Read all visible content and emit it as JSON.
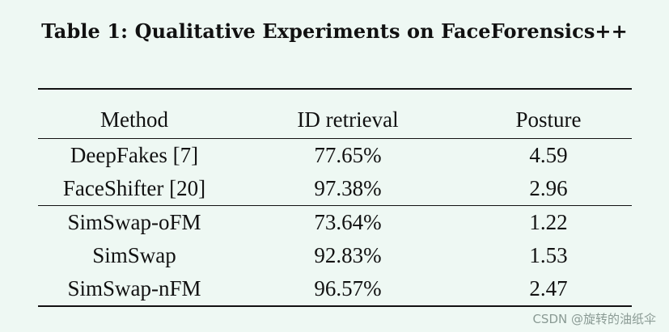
{
  "caption": "Table 1: Qualitative Experiments on FaceForensics++",
  "table": {
    "headers": [
      "Method",
      "ID retrieval",
      "Posture"
    ],
    "group1": [
      {
        "method": "DeepFakes [7]",
        "id_retrieval": "77.65%",
        "posture": "4.59"
      },
      {
        "method": "FaceShifter [20]",
        "id_retrieval": "97.38%",
        "posture": "2.96"
      }
    ],
    "group2": [
      {
        "method": "SimSwap-oFM",
        "id_retrieval": "73.64%",
        "posture": "1.22"
      },
      {
        "method": "SimSwap",
        "id_retrieval": "92.83%",
        "posture": "1.53"
      },
      {
        "method": "SimSwap-nFM",
        "id_retrieval": "96.57%",
        "posture": "2.47"
      }
    ]
  },
  "watermark": "CSDN @旋转的油纸伞"
}
